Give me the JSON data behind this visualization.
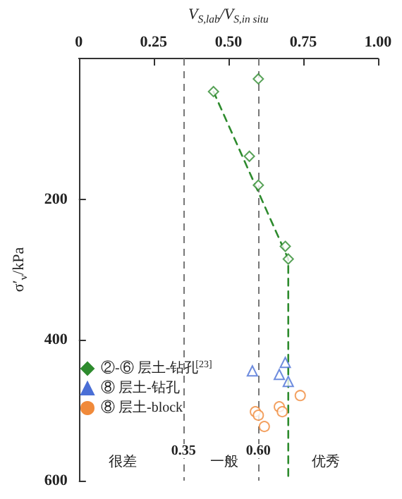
{
  "chart_data": {
    "type": "scatter",
    "xlabel": "V$_{S,lab}$/V$_{S,in situ}$",
    "ylabel": "σ′$_{v}$/kPa",
    "xlim": [
      0,
      1
    ],
    "xticks": [
      {
        "value": 0,
        "label": "0"
      },
      0.25,
      {
        "value": 0.5,
        "label": "0.50"
      },
      0.75,
      {
        "value": 1,
        "label": "1.00"
      }
    ],
    "ylim": [
      600,
      0
    ],
    "yticks": [
      {
        "value": 0,
        "label": null
      },
      200,
      400,
      600
    ],
    "grid": false,
    "legend": "bottom left",
    "series": [
      {
        "name": "②-⑥ 层土-钻孔$^{[23]}$",
        "color": "#2e8b2e",
        "marker": "diamond",
        "x": [
          0.6,
          0.45,
          0.57,
          0.6,
          0.69,
          0.7
        ],
        "values": [
          29,
          47,
          139,
          180,
          267,
          285
        ]
      },
      {
        "name": "⑧ 层土-钻孔",
        "color": "#4a6fd6",
        "marker": "triangle",
        "x": [
          0.69,
          0.58,
          0.67,
          0.7
        ],
        "values": [
          432,
          444,
          449,
          459
        ]
      },
      {
        "name": "⑧ 层土-block",
        "color": "#f08a3a",
        "marker": "circle",
        "x": [
          0.74,
          0.59,
          0.6,
          0.67,
          0.68,
          0.62
        ],
        "values": [
          479,
          502,
          507,
          495,
          502,
          523
        ]
      },
      {
        "type": "line",
        "color": "#2e8b2e",
        "line_style": "dashed",
        "marker": "none",
        "x": [
          0.45,
          0.7,
          0.7
        ],
        "values": [
          47,
          285,
          600
        ]
      }
    ],
    "ref_lines": [
      {
        "axis": "x",
        "value": 0.35,
        "label": "0.35",
        "color": "#777777",
        "line_style": "dashed"
      },
      {
        "axis": "x",
        "value": 0.6,
        "label": "0.60",
        "color": "#777777",
        "line_style": "dashed"
      }
    ],
    "annotations": [
      "很差",
      "一般",
      "优秀"
    ]
  }
}
